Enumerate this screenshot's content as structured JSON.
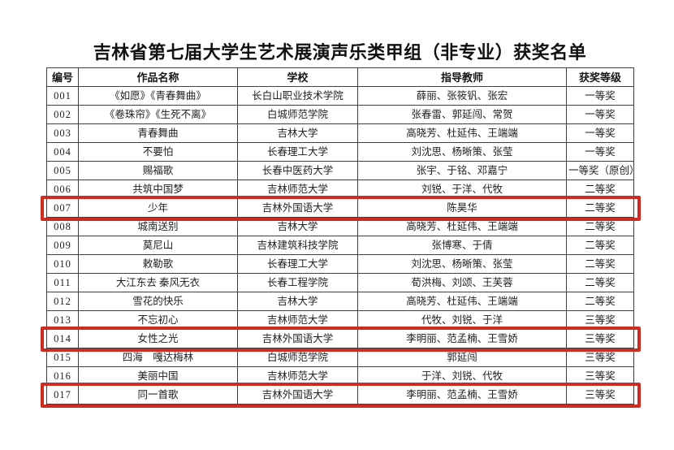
{
  "page": {
    "title": "吉林省第七届大学生艺术展演声乐类甲组（非专业）获奖名单"
  },
  "colors": {
    "highlight_box": "#cc2d23",
    "table_border": "#3f3f3f",
    "text": "#1f1f1f",
    "background": "#ffffff"
  },
  "table": {
    "columns": [
      "编号",
      "作品名称",
      "学校",
      "指导教师",
      "获奖等级"
    ],
    "rows": [
      {
        "id": "001",
        "work": "《如愿》《青春舞曲》",
        "school": "长白山职业技术学院",
        "teachers": "薛丽、张筱钒、张宏",
        "award": "一等奖",
        "highlighted": false
      },
      {
        "id": "002",
        "work": "《卷珠帘》《生死不离》",
        "school": "白城师范学院",
        "teachers": "张春雷、郭延闯、常贺",
        "award": "一等奖",
        "highlighted": false
      },
      {
        "id": "003",
        "work": "青春舞曲",
        "school": "吉林大学",
        "teachers": "高晓芳、杜延伟、王端端",
        "award": "一等奖",
        "highlighted": false
      },
      {
        "id": "004",
        "work": "不要怕",
        "school": "长春理工大学",
        "teachers": "刘沈思、杨晰策、张莹",
        "award": "一等奖",
        "highlighted": false
      },
      {
        "id": "005",
        "work": "赐福歌",
        "school": "长春中医药大学",
        "teachers": "张宇、于铭、邓嘉宁",
        "award": "一等奖（原创）",
        "highlighted": false
      },
      {
        "id": "006",
        "work": "共筑中国梦",
        "school": "吉林师范大学",
        "teachers": "刘锐、于洋、代牧",
        "award": "二等奖",
        "highlighted": false
      },
      {
        "id": "007",
        "work": "少年",
        "school": "吉林外国语大学",
        "teachers": "陈昊华",
        "award": "二等奖",
        "highlighted": true
      },
      {
        "id": "008",
        "work": "城南送别",
        "school": "吉林大学",
        "teachers": "高晓芳、杜延伟、王端端",
        "award": "二等奖",
        "highlighted": false
      },
      {
        "id": "009",
        "work": "莫尼山",
        "school": "吉林建筑科技学院",
        "teachers": "张博寒、于倩",
        "award": "二等奖",
        "highlighted": false
      },
      {
        "id": "010",
        "work": "敕勒歌",
        "school": "长春理工大学",
        "teachers": "刘沈思、杨晰策、张莹",
        "award": "二等奖",
        "highlighted": false
      },
      {
        "id": "011",
        "work": "大江东去 秦风无衣",
        "school": "长春工程学院",
        "teachers": "荀洪梅、刘颂、王芙蓉",
        "award": "二等奖",
        "highlighted": false
      },
      {
        "id": "012",
        "work": "雪花的快乐",
        "school": "吉林大学",
        "teachers": "高晓芳、杜延伟、王端端",
        "award": "二等奖",
        "highlighted": false
      },
      {
        "id": "013",
        "work": "不忘初心",
        "school": "吉林师范大学",
        "teachers": "代牧、刘锐、于洋",
        "award": "三等奖",
        "highlighted": false
      },
      {
        "id": "014",
        "work": "女性之光",
        "school": "吉林外国语大学",
        "teachers": "李明丽、范孟楠、王雪娇",
        "award": "三等奖",
        "highlighted": true
      },
      {
        "id": "015",
        "work": "四海　嘎达梅林",
        "school": "白城师范学院",
        "teachers": "郭延闯",
        "award": "三等奖",
        "highlighted": false
      },
      {
        "id": "016",
        "work": "美丽中国",
        "school": "吉林师范大学",
        "teachers": "于洋、刘锐、代牧",
        "award": "三等奖",
        "highlighted": false
      },
      {
        "id": "017",
        "work": "同一首歌",
        "school": "吉林外国语大学",
        "teachers": "李明丽、范孟楠、王雪娇",
        "award": "三等奖",
        "highlighted": true
      }
    ]
  }
}
